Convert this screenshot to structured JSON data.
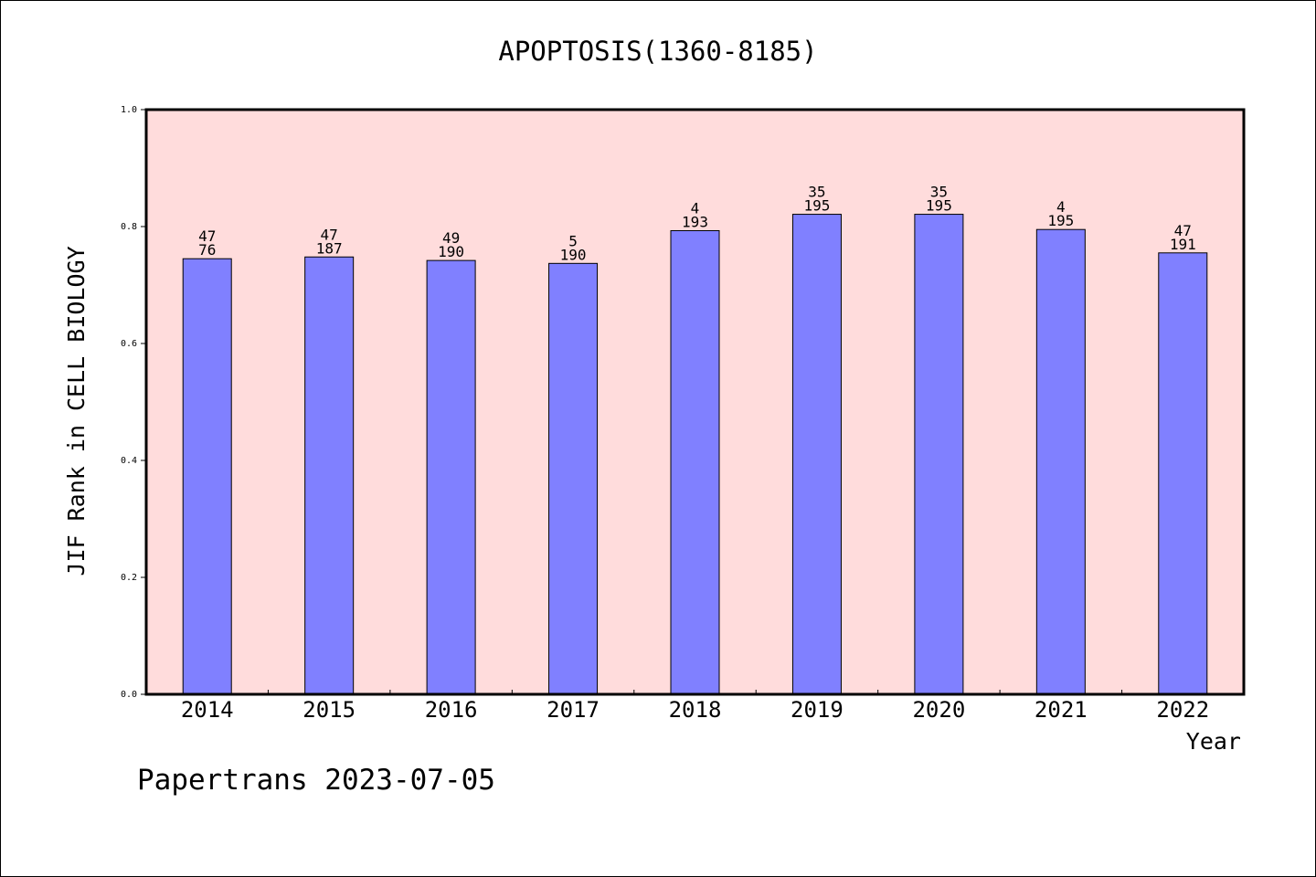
{
  "chart_data": {
    "type": "bar",
    "title": "APOPTOSIS(1360-8185)",
    "xlabel": "Year",
    "ylabel": "JIF Rank in CELL BIOLOGY",
    "ylim": [
      0,
      1.0
    ],
    "yticks": [
      "0.0",
      "0.2",
      "0.4",
      "0.6",
      "0.8",
      "1.0"
    ],
    "categories": [
      "2014",
      "2015",
      "2016",
      "2017",
      "2018",
      "2019",
      "2020",
      "2021",
      "2022"
    ],
    "values": [
      0.745,
      0.748,
      0.742,
      0.737,
      0.793,
      0.821,
      0.821,
      0.795,
      0.755
    ],
    "labels_top": [
      "47",
      "47",
      "49",
      "5",
      "4",
      "35",
      "35",
      "4",
      "47"
    ],
    "labels_bottom": [
      "76",
      "187",
      "190",
      "190",
      "193",
      "195",
      "195",
      "195",
      "191"
    ],
    "bar_color": "#8080ff",
    "plot_background": "#ffdcdc",
    "grid": false
  },
  "footer": {
    "credit": "Papertrans 2023-07-05"
  }
}
